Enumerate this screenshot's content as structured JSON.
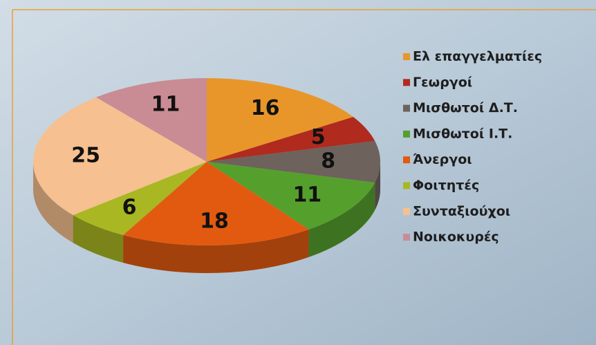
{
  "chart_data": {
    "type": "pie",
    "categories": [
      "Ελ επαγγελματίες",
      "Γεωργοί",
      "Μισθωτοί Δ.Τ.",
      "Μισθωτοί Ι.Τ.",
      "Άνεργοι",
      "Φοιτητές",
      "Συνταξιούχοι",
      "Νοικοκυρές"
    ],
    "values": [
      16,
      5,
      8,
      11,
      18,
      6,
      25,
      11
    ],
    "colors": [
      "#e8962a",
      "#b02a1e",
      "#6e625c",
      "#55a02c",
      "#e25a10",
      "#a9b722",
      "#f6c090",
      "#c98c94"
    ],
    "legend": "right"
  }
}
